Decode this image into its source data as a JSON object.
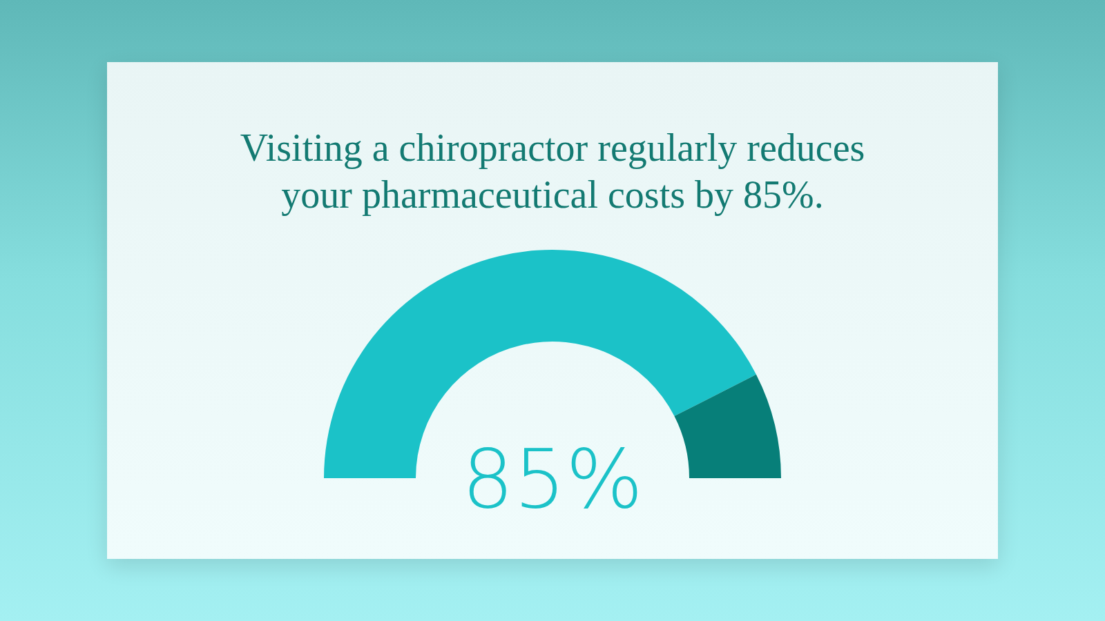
{
  "chart_data": {
    "type": "donut",
    "title": "Visiting a chiropractor regularly reduces\nyour pharmaceutical costs by 85%.",
    "categories": [
      null,
      null
    ],
    "values": [
      85,
      15
    ],
    "colors": [
      "#1bc2c8",
      "#077f79"
    ],
    "annotations": [
      "85%"
    ]
  }
}
